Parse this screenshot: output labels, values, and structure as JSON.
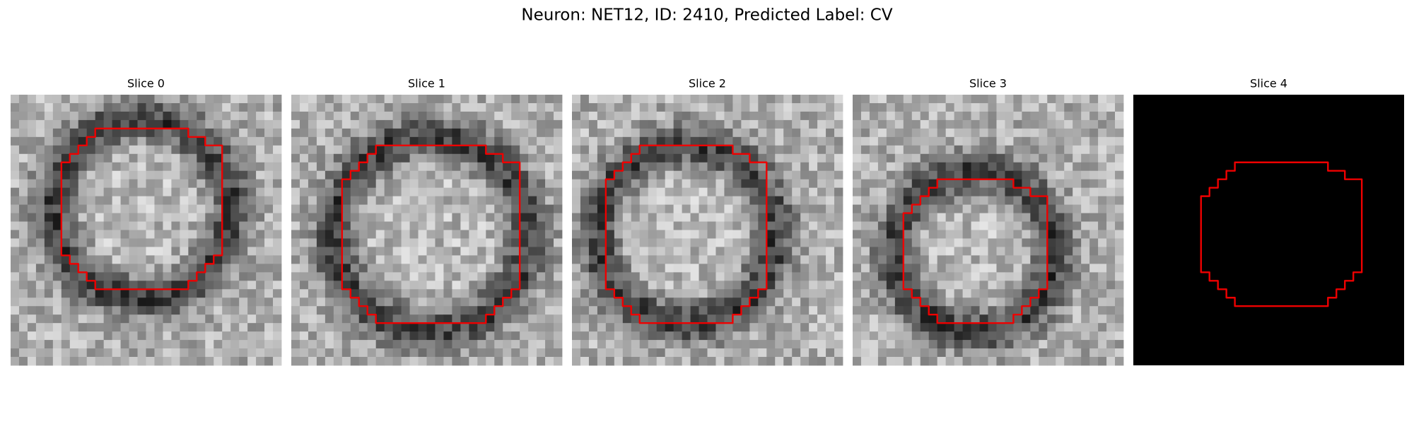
{
  "title": "Neuron: NET12, ID: 2410, Predicted Label: CV",
  "panels": [
    {
      "title": "Slice 0"
    },
    {
      "title": "Slice 1"
    },
    {
      "title": "Slice 2"
    },
    {
      "title": "Slice 3"
    },
    {
      "title": "Slice 4"
    }
  ]
}
